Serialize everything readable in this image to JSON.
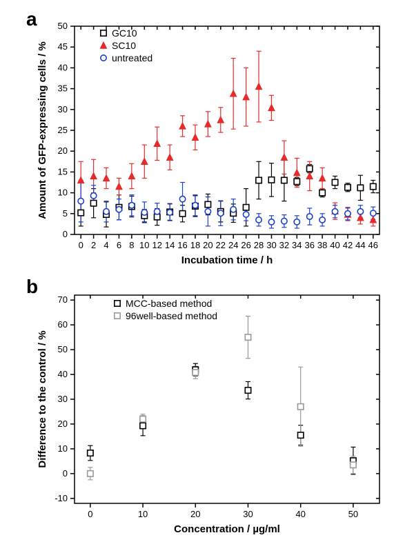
{
  "panelA": {
    "type": "scatter",
    "label": "a",
    "label_fontsize": 28,
    "xaxis": {
      "title": "Incubation time / h",
      "ticks": [
        0,
        2,
        4,
        6,
        8,
        10,
        12,
        14,
        16,
        18,
        20,
        22,
        24,
        26,
        28,
        30,
        32,
        34,
        36,
        38,
        40,
        42,
        44,
        46
      ],
      "lim": [
        -1,
        47
      ]
    },
    "yaxis": {
      "title": "Amount of GFP-expressing cells / %",
      "ticks": [
        0,
        5,
        10,
        15,
        20,
        25,
        30,
        35,
        40,
        45,
        50
      ],
      "lim": [
        0,
        50
      ]
    },
    "series": [
      {
        "name": "GC10",
        "marker": "square-open",
        "color": "#000000",
        "x": [
          0,
          2,
          4,
          6,
          8,
          10,
          12,
          14,
          16,
          18,
          20,
          22,
          24,
          26,
          28,
          30,
          32,
          34,
          36,
          38,
          40,
          42,
          44,
          46
        ],
        "y": [
          5.2,
          7.5,
          4.8,
          6.5,
          6.7,
          4.5,
          4.2,
          5.4,
          5.0,
          6.8,
          7.2,
          5.5,
          5.1,
          6.5,
          13.0,
          13.1,
          13.0,
          12.7,
          15.8,
          10.0,
          12.5,
          11.3,
          11.2,
          11.5
        ],
        "err": [
          3.2,
          3.5,
          3.0,
          3.0,
          2.5,
          1.5,
          2.0,
          2.0,
          2.0,
          2.5,
          2.5,
          2.5,
          2.2,
          4.5,
          4.5,
          4.0,
          5.0,
          1.0,
          1.0,
          1.0,
          1.5,
          1.0,
          3.0,
          1.5
        ]
      },
      {
        "name": "SC10",
        "marker": "triangle-fill",
        "color": "#e62b2b",
        "x": [
          0,
          2,
          4,
          6,
          8,
          10,
          12,
          14,
          16,
          18,
          20,
          22,
          24,
          26,
          28,
          30,
          32,
          34,
          36,
          38,
          40,
          42,
          44,
          46
        ],
        "y": [
          13.0,
          14.0,
          13.5,
          11.5,
          14.0,
          17.5,
          21.8,
          18.5,
          26.0,
          23.3,
          26.5,
          27.5,
          33.8,
          33.0,
          35.5,
          30.4,
          18.5,
          14.8,
          14.0,
          13.5,
          5.6,
          4.8,
          4.0,
          3.5
        ],
        "err": [
          4.5,
          4.0,
          2.5,
          2.0,
          3.0,
          4.0,
          4.0,
          3.0,
          2.5,
          3.0,
          3.0,
          3.0,
          8.5,
          7.0,
          8.5,
          3.0,
          4.0,
          3.5,
          3.5,
          2.5,
          2.0,
          1.5,
          1.5,
          1.5
        ]
      },
      {
        "name": "untreated",
        "marker": "circle-open",
        "color": "#1a3fd0",
        "x": [
          0,
          2,
          4,
          6,
          8,
          10,
          12,
          14,
          16,
          18,
          20,
          22,
          24,
          26,
          28,
          30,
          32,
          34,
          36,
          38,
          40,
          42,
          44,
          46
        ],
        "y": [
          8.0,
          9.3,
          5.5,
          6.0,
          7.0,
          5.3,
          5.5,
          5.3,
          8.5,
          7.0,
          5.5,
          5.1,
          6.0,
          4.8,
          3.5,
          3.0,
          3.2,
          3.0,
          4.3,
          3.5,
          5.5,
          5.0,
          5.5,
          5.1
        ],
        "err": [
          5.0,
          2.5,
          2.5,
          2.5,
          2.5,
          2.5,
          2.0,
          2.0,
          4.0,
          2.5,
          3.5,
          3.0,
          2.5,
          1.5,
          1.5,
          1.5,
          1.5,
          1.5,
          2.0,
          1.5,
          1.5,
          1.5,
          1.5,
          1.5
        ]
      }
    ],
    "legend_pos": "top-left",
    "background_color": "#ffffff",
    "font_family": "Arial"
  },
  "panelB": {
    "type": "scatter",
    "label": "b",
    "label_fontsize": 28,
    "xaxis": {
      "title": "Concentration / µg/ml",
      "ticks": [
        0,
        10,
        20,
        30,
        40,
        50
      ],
      "lim": [
        -3,
        55
      ]
    },
    "yaxis": {
      "title": "Difference to the control / %",
      "ticks": [
        -10,
        0,
        10,
        20,
        30,
        40,
        50,
        60,
        70
      ],
      "lim": [
        -12,
        72
      ]
    },
    "series": [
      {
        "name": "MCC-based method",
        "marker": "square-open",
        "color": "#000000",
        "x": [
          0,
          10,
          20,
          30,
          40,
          50
        ],
        "y": [
          8.3,
          19.3,
          41.9,
          33.6,
          15.5,
          5.2
        ],
        "err": [
          3.0,
          4.0,
          2.5,
          3.5,
          4.0,
          5.5
        ]
      },
      {
        "name": "96well-based method",
        "marker": "square-open",
        "color": "#999999",
        "x": [
          0,
          10,
          20,
          30,
          40,
          50
        ],
        "y": [
          0.0,
          22.0,
          40.8,
          55.0,
          27.0,
          3.5
        ],
        "err": [
          2.5,
          2.0,
          2.5,
          8.5,
          16.0,
          3.5
        ]
      }
    ],
    "legend_pos": "top-left",
    "background_color": "#ffffff",
    "font_family": "Arial"
  },
  "colors": {
    "background": "#ffffff",
    "axis": "#000000"
  }
}
